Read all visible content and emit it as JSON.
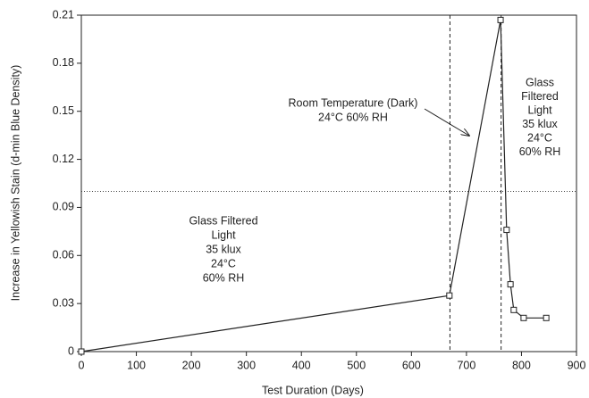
{
  "chart_data": {
    "type": "line",
    "x_label": "Test Duration (Days)",
    "y_label": "Increase in Yellowish Stain (d-min Blue Density)",
    "x": [
      0,
      669,
      762,
      773,
      780,
      786,
      804,
      845
    ],
    "series": [
      {
        "color": "#222222",
        "values": [
          0,
          0.035,
          0.207,
          0.076,
          0.042,
          0.026,
          0.021,
          0.021
        ]
      }
    ],
    "xlim": [
      0,
      900
    ],
    "xticks": [
      0,
      100,
      200,
      300,
      400,
      500,
      600,
      700,
      800,
      900
    ],
    "ylim": [
      0,
      0.21
    ],
    "yticks": [
      0,
      0.03,
      0.06,
      0.09,
      0.12,
      0.15,
      0.18,
      0.21
    ],
    "vlines": [
      670,
      763
    ],
    "hline": 0.1,
    "annotations": [
      {
        "lines": [
          "Glass Filtered",
          "Light",
          "35 klux",
          "24°C",
          "60% RH"
        ]
      },
      {
        "lines": [
          "Room Temperature (Dark)",
          "24°C  60% RH"
        ]
      },
      {
        "lines": [
          "Glass",
          "Filtered",
          "Light",
          "35 klux",
          "24°C",
          "60% RH"
        ]
      }
    ]
  }
}
